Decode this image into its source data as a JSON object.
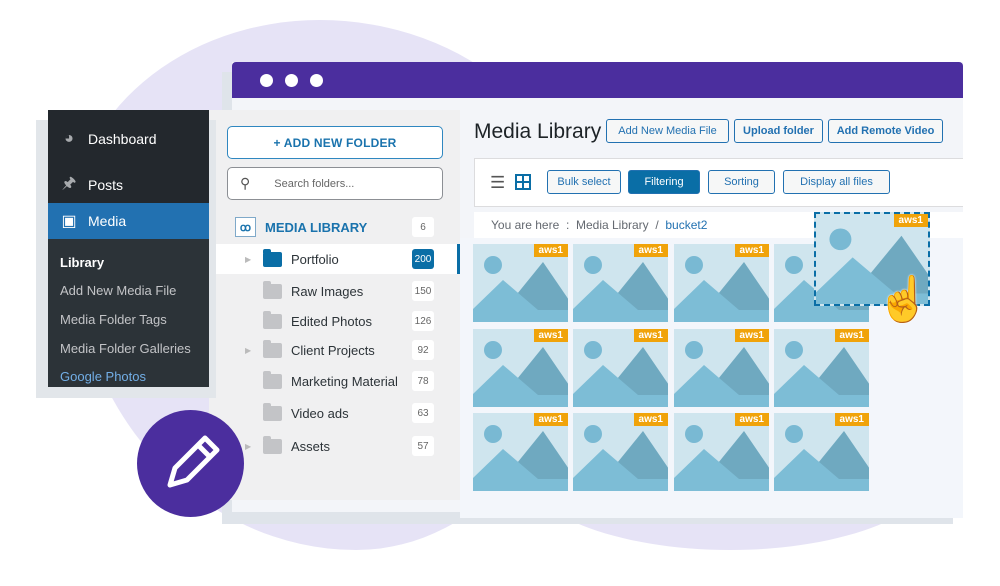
{
  "colors": {
    "brand": "#4b2e9e",
    "accent": "#0a6ea6",
    "wp_sidebar": "#23282d",
    "badge": "#f0a30a"
  },
  "wp_menu": {
    "items": [
      {
        "label": "Dashboard",
        "icon": "dashboard-icon"
      },
      {
        "label": "Posts",
        "icon": "pin-icon"
      },
      {
        "label": "Media",
        "icon": "media-icon",
        "active": true
      }
    ],
    "submenu": [
      {
        "label": "Library",
        "active": true
      },
      {
        "label": "Add New Media File"
      },
      {
        "label": "Media Folder Tags"
      },
      {
        "label": "Media Folder Galleries"
      },
      {
        "label": "Google Photos",
        "highlight": true
      }
    ]
  },
  "folders": {
    "add_label": "+ ADD NEW FOLDER",
    "search_placeholder": "Search folders...",
    "root": {
      "label": "MEDIA LIBRARY",
      "count": "6"
    },
    "items": [
      {
        "label": "Portfolio",
        "count": "200",
        "selected": true,
        "expandable": true
      },
      {
        "label": "Raw Images",
        "count": "150"
      },
      {
        "label": "Edited Photos",
        "count": "126"
      },
      {
        "label": "Client Projects",
        "count": "92",
        "expandable": true
      },
      {
        "label": "Marketing Material",
        "count": "78"
      },
      {
        "label": "Video ads",
        "count": "63"
      },
      {
        "label": "Assets",
        "count": "57",
        "expandable": true
      }
    ]
  },
  "main": {
    "title": "Media Library",
    "header_buttons": [
      "Add New Media File",
      "Upload folder",
      "Add Remote Video"
    ],
    "toolbar": {
      "buttons": [
        "Bulk select",
        "Filtering",
        "Sorting",
        "Display all files"
      ],
      "active": "Filtering"
    },
    "breadcrumb": {
      "prefix": "You are here",
      "sep": ":",
      "root": "Media Library",
      "slash": "/",
      "current": "bucket2"
    },
    "thumb_badge": "aws1",
    "thumb_count": 12
  }
}
